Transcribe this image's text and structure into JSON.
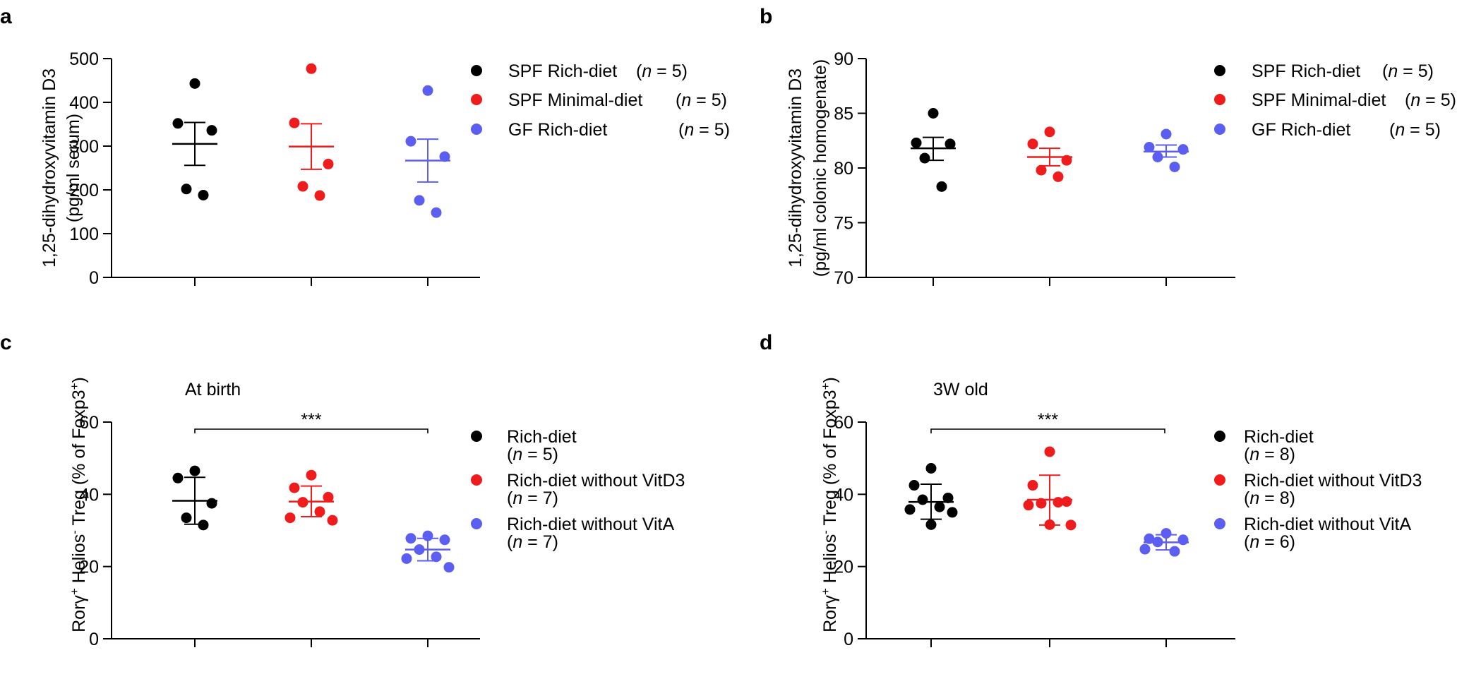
{
  "chart_data": [
    {
      "panel": "a",
      "type": "scatter",
      "ylabel": [
        "1,25-dihydroxyvitamin D3",
        "(pg/ml serum)"
      ],
      "ylim": [
        0,
        500
      ],
      "yticks": [
        "0",
        "100",
        "200",
        "300",
        "400",
        "500"
      ],
      "groups": [
        {
          "legend": "SPF Rich-diet",
          "n": "(n = 5)",
          "color": "#000000",
          "points": [
            443,
            352,
            336,
            202,
            188
          ],
          "mean": 305,
          "error": [
            256,
            354
          ]
        },
        {
          "legend": "SPF Minimal-diet",
          "n": "(n = 5)",
          "color": "#ee1c1c",
          "points": [
            477,
            353,
            259,
            208,
            187
          ],
          "mean": 299,
          "error": [
            247,
            351
          ]
        },
        {
          "legend": "GF Rich-diet",
          "n": "(n = 5)",
          "color": "#5b5ef0",
          "points": [
            427,
            311,
            276,
            176,
            148
          ],
          "mean": 267,
          "error": [
            218,
            316
          ]
        }
      ]
    },
    {
      "panel": "b",
      "type": "scatter",
      "ylabel": [
        "1,25-dihydroxyvitamin D3",
        "(pg/ml colonic homogenate)"
      ],
      "ylim": [
        70,
        90
      ],
      "yticks": [
        "70",
        "75",
        "80",
        "85",
        "90"
      ],
      "groups": [
        {
          "legend": "SPF Rich-diet",
          "n": "(n = 5)",
          "color": "#000000",
          "points": [
            85.0,
            82.3,
            82.2,
            80.9,
            78.3
          ],
          "mean": 81.8,
          "error": [
            80.7,
            82.8
          ]
        },
        {
          "legend": "SPF Minimal-diet",
          "n": "(n = 5)",
          "color": "#ee1c1c",
          "points": [
            83.3,
            82.2,
            80.7,
            79.8,
            79.2
          ],
          "mean": 81.0,
          "error": [
            80.2,
            81.8
          ]
        },
        {
          "legend": "GF Rich-diet",
          "n": "(n = 5)",
          "color": "#5b5ef0",
          "points": [
            83.1,
            81.9,
            81.7,
            81.0,
            80.1
          ],
          "mean": 81.5,
          "error": [
            81.0,
            82.1
          ]
        }
      ]
    },
    {
      "panel": "c",
      "type": "scatter",
      "title": "At birth",
      "ylabel": [
        "Rorγ",
        "+",
        " Helios",
        "-",
        " Treg (% of Foxp3",
        "+",
        ")"
      ],
      "ylim": [
        0,
        60
      ],
      "yticks": [
        "0",
        "20",
        "40",
        "60"
      ],
      "significance": "***",
      "groups": [
        {
          "legend": "Rich-diet",
          "n": "(n = 5)",
          "color": "#000000",
          "points": [
            46.5,
            44.5,
            37.5,
            33.5,
            31.5
          ],
          "mean": 38.2,
          "error": [
            31.7,
            44.7
          ]
        },
        {
          "legend": "Rich-diet without VitD3",
          "n": "(n = 7)",
          "color": "#ee1c1c",
          "points": [
            45.3,
            41.8,
            39.2,
            37.8,
            35.2,
            33.5,
            32.8
          ],
          "mean": 38.0,
          "error": [
            33.8,
            42.3
          ]
        },
        {
          "legend": "Rich-diet without VitA",
          "n": "(n = 7)",
          "color": "#5b5ef0",
          "points": [
            28.5,
            27.8,
            27.4,
            24.7,
            22.7,
            22.2,
            19.8
          ],
          "mean": 24.7,
          "error": [
            21.6,
            27.8
          ]
        }
      ]
    },
    {
      "panel": "d",
      "type": "scatter",
      "title": "3W old",
      "ylabel": [
        "Rorγ",
        "+",
        " Helios",
        "-",
        " Treg (% of Foxp3",
        "+",
        ")"
      ],
      "ylim": [
        0,
        60
      ],
      "yticks": [
        "0",
        "20",
        "40",
        "60"
      ],
      "significance": "***",
      "groups": [
        {
          "legend": "Rich-diet",
          "n": "(n = 8)",
          "color": "#000000",
          "points": [
            47.2,
            42.5,
            39.0,
            38.5,
            36.5,
            35.8,
            35.0,
            31.6
          ],
          "mean": 37.9,
          "error": [
            33.1,
            42.8
          ]
        },
        {
          "legend": "Rich-diet without VitD3",
          "n": "(n = 8)",
          "color": "#ee1c1c",
          "points": [
            51.8,
            42.5,
            38.0,
            37.5,
            37.8,
            37.0,
            31.5,
            31.6
          ],
          "mean": 38.5,
          "error": [
            31.5,
            45.3
          ]
        },
        {
          "legend": "Rich-diet without VitA",
          "n": "(n = 6)",
          "color": "#5b5ef0",
          "points": [
            29.2,
            27.7,
            27.4,
            26.8,
            24.2,
            24.8
          ],
          "mean": 26.7,
          "error": [
            24.6,
            28.8
          ]
        }
      ]
    }
  ]
}
